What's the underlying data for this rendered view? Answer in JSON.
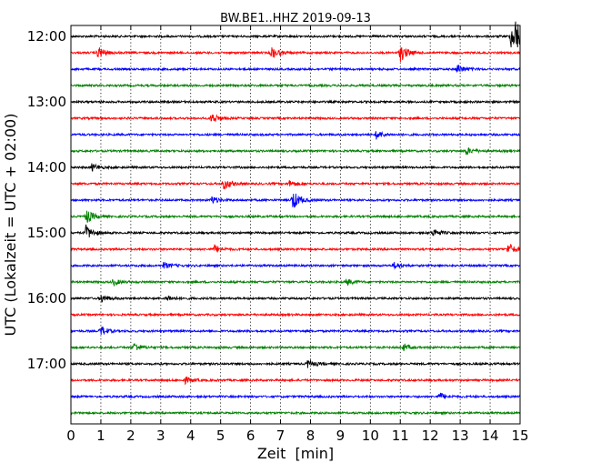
{
  "chart_data": {
    "type": "line",
    "title": "BW.BE1..HHZ 2019-09-13",
    "xlabel": "Zeit  [min]",
    "ylabel": "UTC (Lokalzeit = UTC + 02:00)",
    "xlim": [
      0,
      15
    ],
    "x_ticks": [
      "0",
      "1",
      "2",
      "3",
      "4",
      "5",
      "6",
      "7",
      "8",
      "9",
      "10",
      "11",
      "12",
      "13",
      "14",
      "15"
    ],
    "y_ticks": [
      "12:00",
      "13:00",
      "14:00",
      "15:00",
      "16:00",
      "17:00"
    ],
    "grid": "vertical dotted",
    "color_cycle": [
      "#000000",
      "#ff0000",
      "#0000ff",
      "#008000"
    ],
    "traces": [
      {
        "start": "12:00",
        "events": [
          [
            14.7,
            1.0
          ],
          [
            14.85,
            1.0
          ]
        ]
      },
      {
        "start": "12:15",
        "events": [
          [
            0.9,
            0.5
          ],
          [
            6.7,
            0.5
          ],
          [
            11.0,
            0.7
          ]
        ]
      },
      {
        "start": "12:30",
        "events": [
          [
            12.9,
            0.4
          ]
        ]
      },
      {
        "start": "12:45",
        "events": []
      },
      {
        "start": "13:00",
        "events": []
      },
      {
        "start": "13:15",
        "events": [
          [
            4.7,
            0.45
          ]
        ]
      },
      {
        "start": "13:30",
        "events": [
          [
            10.2,
            0.35
          ]
        ]
      },
      {
        "start": "13:45",
        "events": [
          [
            13.2,
            0.3
          ]
        ]
      },
      {
        "start": "14:00",
        "events": [
          [
            0.7,
            0.3
          ]
        ]
      },
      {
        "start": "14:15",
        "events": [
          [
            5.1,
            0.5
          ],
          [
            7.3,
            0.25
          ]
        ]
      },
      {
        "start": "14:30",
        "events": [
          [
            4.7,
            0.3
          ],
          [
            7.4,
            0.8
          ]
        ]
      },
      {
        "start": "14:45",
        "events": [
          [
            0.5,
            0.6
          ]
        ]
      },
      {
        "start": "15:00",
        "events": [
          [
            0.5,
            0.6
          ],
          [
            12.1,
            0.35
          ]
        ]
      },
      {
        "start": "15:15",
        "events": [
          [
            4.8,
            0.3
          ],
          [
            14.6,
            0.5
          ]
        ]
      },
      {
        "start": "15:30",
        "events": [
          [
            3.1,
            0.25
          ],
          [
            10.8,
            0.25
          ]
        ]
      },
      {
        "start": "15:45",
        "events": [
          [
            1.4,
            0.25
          ],
          [
            9.2,
            0.25
          ]
        ]
      },
      {
        "start": "16:00",
        "events": [
          [
            1.0,
            0.35
          ],
          [
            3.2,
            0.25
          ]
        ]
      },
      {
        "start": "16:15",
        "events": []
      },
      {
        "start": "16:30",
        "events": [
          [
            1.0,
            0.4
          ]
        ]
      },
      {
        "start": "16:45",
        "events": [
          [
            2.1,
            0.35
          ],
          [
            11.1,
            0.25
          ]
        ]
      },
      {
        "start": "17:00",
        "events": [
          [
            7.9,
            0.3
          ]
        ]
      },
      {
        "start": "17:15",
        "events": [
          [
            3.8,
            0.25
          ]
        ]
      },
      {
        "start": "17:30",
        "events": [
          [
            12.3,
            0.3
          ]
        ]
      },
      {
        "start": "17:45",
        "events": []
      }
    ]
  }
}
